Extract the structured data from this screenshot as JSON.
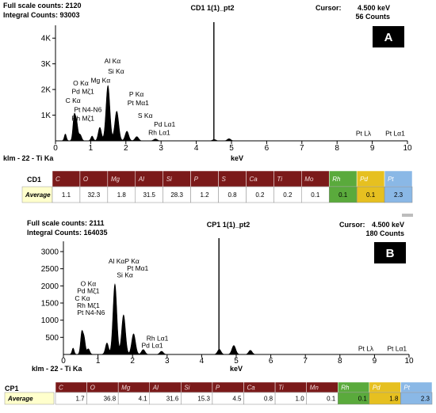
{
  "chart_data": [
    {
      "type": "spectrum",
      "header": {
        "full_scale": "Full scale counts: 2120",
        "integral": "Integral Counts: 93003",
        "title": "CD1 1(1)_pt2",
        "cursor_label": "Cursor:",
        "cursor_value": "4.500 keV",
        "counts": "56 Counts"
      },
      "panel_label": "A",
      "xlabel": "keV",
      "source_label": "klm - 22 - Ti Ka",
      "xlim": [
        0,
        10
      ],
      "ylim": [
        0,
        4500
      ],
      "xticks": [
        "0",
        "1",
        "2",
        "3",
        "4",
        "5",
        "6",
        "7",
        "8",
        "9",
        "10"
      ],
      "yticks": [
        {
          "value": 1000,
          "label": "1K"
        },
        {
          "value": 2000,
          "label": "2K"
        },
        {
          "value": 3000,
          "label": "3K"
        },
        {
          "value": 4000,
          "label": "4K"
        }
      ],
      "cursor_x": 4.5,
      "peaks": [
        {
          "x": 0.28,
          "y": 260,
          "w": 0.03
        },
        {
          "x": 0.53,
          "y": 950,
          "w": 0.035
        },
        {
          "x": 0.6,
          "y": 700,
          "w": 0.035
        },
        {
          "x": 0.7,
          "y": 240,
          "w": 0.04
        },
        {
          "x": 1.04,
          "y": 180,
          "w": 0.035
        },
        {
          "x": 1.26,
          "y": 520,
          "w": 0.045
        },
        {
          "x": 1.49,
          "y": 2150,
          "w": 0.055
        },
        {
          "x": 1.74,
          "y": 1150,
          "w": 0.055
        },
        {
          "x": 2.03,
          "y": 370,
          "w": 0.05
        },
        {
          "x": 2.31,
          "y": 160,
          "w": 0.05
        },
        {
          "x": 2.84,
          "y": 70,
          "w": 0.05
        },
        {
          "x": 4.51,
          "y": 50,
          "w": 0.05
        },
        {
          "x": 4.93,
          "y": 80,
          "w": 0.05
        }
      ],
      "peak_labels": [
        {
          "text": "Al Kα",
          "x": 1.62,
          "y": 3020
        },
        {
          "text": "Si Kα",
          "x": 1.72,
          "y": 2620
        },
        {
          "text": "Mg Kα",
          "x": 1.28,
          "y": 2270
        },
        {
          "text": "O Kα",
          "x": 0.72,
          "y": 2150
        },
        {
          "text": "Pd Mζ1",
          "x": 0.78,
          "y": 1830
        },
        {
          "text": "C Kα",
          "x": 0.5,
          "y": 1480
        },
        {
          "text": "Pt N4-N6",
          "x": 0.92,
          "y": 1130
        },
        {
          "text": "Rh Mζ1",
          "x": 0.78,
          "y": 790
        },
        {
          "text": "P Kα",
          "x": 2.3,
          "y": 1720
        },
        {
          "text": "Pt Mα1",
          "x": 2.35,
          "y": 1390
        },
        {
          "text": "S Kα",
          "x": 2.55,
          "y": 890
        },
        {
          "text": "Pd Lα1",
          "x": 3.1,
          "y": 560
        },
        {
          "text": "Rh Lα1",
          "x": 2.95,
          "y": 230
        },
        {
          "text": "Pt Lλ",
          "x": 8.75,
          "y": 200
        },
        {
          "text": "Pt Lα1",
          "x": 9.65,
          "y": 200
        }
      ],
      "table": {
        "sample": "CD1",
        "row_label": "Average",
        "elements": [
          "C",
          "O",
          "Mg",
          "Al",
          "Si",
          "P",
          "S",
          "Ca",
          "Ti",
          "Mo",
          "Rh",
          "Pd",
          "Pt"
        ],
        "values": [
          "1.1",
          "32.3",
          "1.8",
          "31.5",
          "28.3",
          "1.2",
          "0.8",
          "0.2",
          "0.2",
          "0.1",
          "0.1",
          "0.1",
          "2.3"
        ],
        "header_colors": [
          "#7b1a1a",
          "#7b1a1a",
          "#7b1a1a",
          "#7b1a1a",
          "#7b1a1a",
          "#7b1a1a",
          "#7b1a1a",
          "#7b1a1a",
          "#7b1a1a",
          "#7b1a1a",
          "#5aaa3c",
          "#e6c020",
          "#8ab8e6"
        ],
        "value_colors": [
          "#ffffff",
          "#ffffff",
          "#ffffff",
          "#ffffff",
          "#ffffff",
          "#ffffff",
          "#ffffff",
          "#ffffff",
          "#ffffff",
          "#ffffff",
          "#5aaa3c",
          "#e6c020",
          "#8ab8e6"
        ]
      }
    },
    {
      "type": "spectrum",
      "header": {
        "full_scale": "Full scale counts: 2111",
        "integral": "Integral Counts: 164035",
        "title": "CP1 1(1)_pt2",
        "cursor_label": "Cursor:",
        "cursor_value": "4.500 keV",
        "counts": "180 Counts"
      },
      "panel_label": "B",
      "xlabel": "keV",
      "source_label": "klm - 22 - Ti Ka",
      "xlim": [
        0,
        10
      ],
      "ylim": [
        0,
        3300
      ],
      "xticks": [
        "0",
        "1",
        "2",
        "3",
        "4",
        "5",
        "6",
        "7",
        "8",
        "9",
        "10"
      ],
      "yticks": [
        {
          "value": 500,
          "label": "500"
        },
        {
          "value": 1000,
          "label": "1000"
        },
        {
          "value": 1500,
          "label": "1500"
        },
        {
          "value": 2000,
          "label": "2000"
        },
        {
          "value": 2500,
          "label": "2500"
        },
        {
          "value": 3000,
          "label": "3000"
        }
      ],
      "cursor_x": 4.5,
      "peaks": [
        {
          "x": 0.28,
          "y": 180,
          "w": 0.03
        },
        {
          "x": 0.53,
          "y": 620,
          "w": 0.035
        },
        {
          "x": 0.6,
          "y": 450,
          "w": 0.035
        },
        {
          "x": 0.72,
          "y": 160,
          "w": 0.04
        },
        {
          "x": 1.26,
          "y": 330,
          "w": 0.045
        },
        {
          "x": 1.49,
          "y": 2050,
          "w": 0.055
        },
        {
          "x": 1.74,
          "y": 1150,
          "w": 0.055
        },
        {
          "x": 2.03,
          "y": 600,
          "w": 0.055
        },
        {
          "x": 2.31,
          "y": 140,
          "w": 0.05
        },
        {
          "x": 2.84,
          "y": 90,
          "w": 0.05
        },
        {
          "x": 4.51,
          "y": 150,
          "w": 0.05
        },
        {
          "x": 4.93,
          "y": 260,
          "w": 0.055
        },
        {
          "x": 5.41,
          "y": 120,
          "w": 0.05
        }
      ],
      "peak_labels": [
        {
          "text": "Al KαP Kα",
          "x": 1.75,
          "y": 2650
        },
        {
          "text": "Pt Mα1",
          "x": 2.15,
          "y": 2450
        },
        {
          "text": "Si Kα",
          "x": 1.78,
          "y": 2250
        },
        {
          "text": "O Kα",
          "x": 0.72,
          "y": 2000
        },
        {
          "text": "Pd Mζ1",
          "x": 0.72,
          "y": 1790
        },
        {
          "text": "C Kα",
          "x": 0.55,
          "y": 1570
        },
        {
          "text": "Rh Mζ1",
          "x": 0.72,
          "y": 1360
        },
        {
          "text": "Pt N4-N6",
          "x": 0.8,
          "y": 1150
        },
        {
          "text": "Rh Lα1",
          "x": 2.72,
          "y": 400
        },
        {
          "text": "Pd Lα1",
          "x": 2.57,
          "y": 200
        },
        {
          "text": "Pt Lλ",
          "x": 8.75,
          "y": 100
        },
        {
          "text": "Pt Lα1",
          "x": 9.65,
          "y": 100
        }
      ],
      "table": {
        "sample": "CP1",
        "row_label": "Average",
        "elements": [
          "C",
          "O",
          "Mg",
          "Al",
          "Si",
          "P",
          "Ca",
          "Ti",
          "Mn",
          "Rh",
          "Pd",
          "Pt"
        ],
        "values": [
          "1.7",
          "36.8",
          "4.1",
          "31.6",
          "15.3",
          "4.5",
          "0.8",
          "1.0",
          "0.1",
          "0.1",
          "1.8",
          "2.3"
        ],
        "header_colors": [
          "#7b1a1a",
          "#7b1a1a",
          "#7b1a1a",
          "#7b1a1a",
          "#7b1a1a",
          "#7b1a1a",
          "#7b1a1a",
          "#7b1a1a",
          "#7b1a1a",
          "#5aaa3c",
          "#e6c020",
          "#8ab8e6"
        ],
        "value_colors": [
          "#ffffff",
          "#ffffff",
          "#ffffff",
          "#ffffff",
          "#ffffff",
          "#ffffff",
          "#ffffff",
          "#ffffff",
          "#ffffff",
          "#5aaa3c",
          "#e6c020",
          "#8ab8e6"
        ]
      }
    }
  ]
}
